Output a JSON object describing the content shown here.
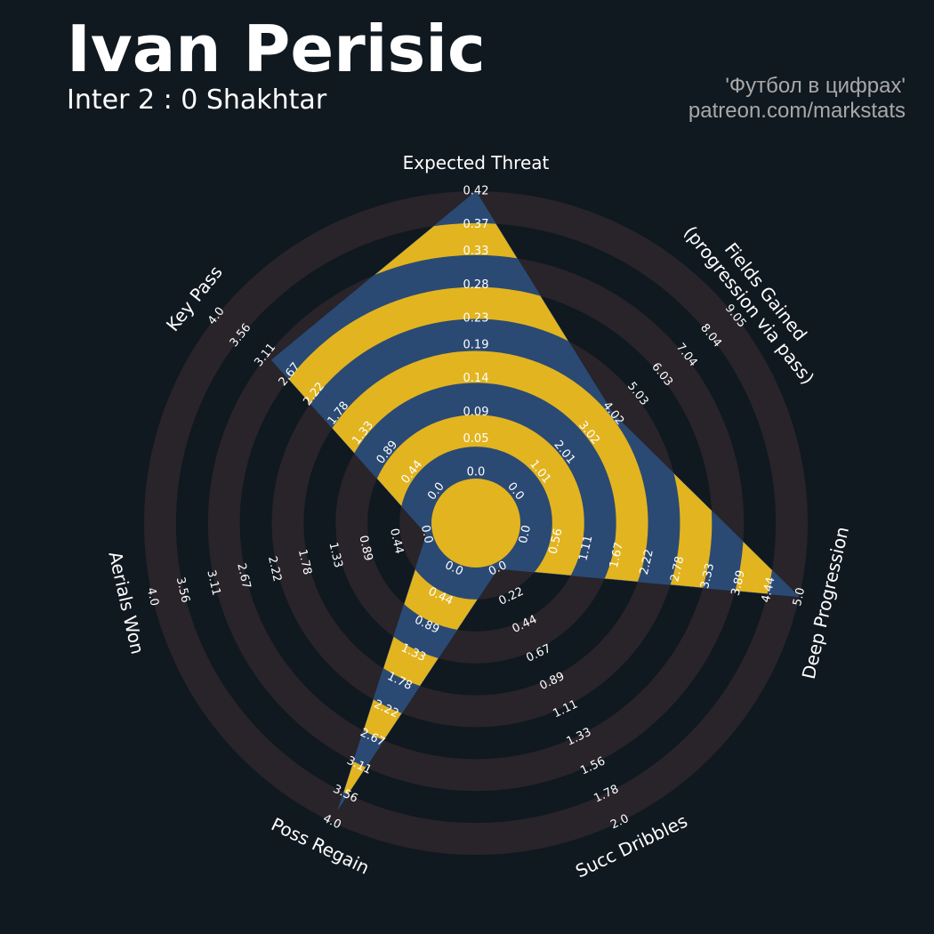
{
  "chart_data": {
    "type": "radar",
    "title": "Ivan Perisic",
    "subtitle": "Inter 2 : 0 Shakhtar",
    "credits": [
      "'Футбол в цифрах'",
      "patreon.com/markstats"
    ],
    "axes": [
      {
        "label": [
          "Expected Threat"
        ],
        "lim": [
          0,
          0.42
        ],
        "ticks": [
          {
            "value": 0,
            "label": "0.0"
          },
          0.05,
          0.09,
          0.14,
          0.19,
          0.23,
          0.28,
          0.33,
          0.37,
          0.42
        ]
      },
      {
        "label": [
          "Fields Gained",
          "(progression via pass)"
        ],
        "lim": [
          0,
          9.05
        ],
        "ticks": [
          {
            "value": 0,
            "label": "0.0"
          },
          1.01,
          2.01,
          3.02,
          4.02,
          5.03,
          6.03,
          7.04,
          8.04,
          9.05
        ]
      },
      {
        "label": [
          "Deep Progression"
        ],
        "lim": [
          0,
          5
        ],
        "ticks": [
          {
            "value": 0,
            "label": "0.0"
          },
          0.56,
          1.11,
          1.67,
          2.22,
          2.78,
          3.33,
          3.89,
          4.44,
          {
            "value": 5,
            "label": "5.0"
          }
        ]
      },
      {
        "label": [
          "Succ Dribbles"
        ],
        "lim": [
          0,
          2
        ],
        "ticks": [
          {
            "value": 0,
            "label": "0.0"
          },
          0.22,
          0.44,
          0.67,
          0.89,
          1.11,
          1.33,
          1.56,
          1.78,
          {
            "value": 2,
            "label": "2.0"
          }
        ]
      },
      {
        "label": [
          "Poss Regain"
        ],
        "lim": [
          0,
          4
        ],
        "ticks": [
          {
            "value": 0,
            "label": "0.0"
          },
          0.44,
          0.89,
          1.33,
          1.78,
          2.22,
          2.67,
          3.11,
          3.56,
          {
            "value": 4,
            "label": "4.0"
          }
        ]
      },
      {
        "label": [
          "Aerials Won"
        ],
        "lim": [
          0,
          4
        ],
        "ticks": [
          {
            "value": 0,
            "label": "0.0"
          },
          0.44,
          0.89,
          1.33,
          1.78,
          2.22,
          2.67,
          3.11,
          3.56,
          {
            "value": 4,
            "label": "4.0"
          }
        ]
      },
      {
        "label": [
          "Key Pass"
        ],
        "lim": [
          0,
          4
        ],
        "ticks": [
          {
            "value": 0,
            "label": "0.0"
          },
          0.44,
          0.89,
          1.33,
          1.78,
          2.22,
          2.67,
          3.11,
          3.56,
          {
            "value": 4,
            "label": "4.0"
          }
        ]
      }
    ],
    "values": [
      0.42,
      4.02,
      5.0,
      0.0,
      3.8,
      0.0,
      3.0
    ],
    "colors": {
      "inside": [
        "#2a4a74",
        "#e2b420"
      ],
      "rings": "#28242a",
      "background": "#101820"
    }
  }
}
